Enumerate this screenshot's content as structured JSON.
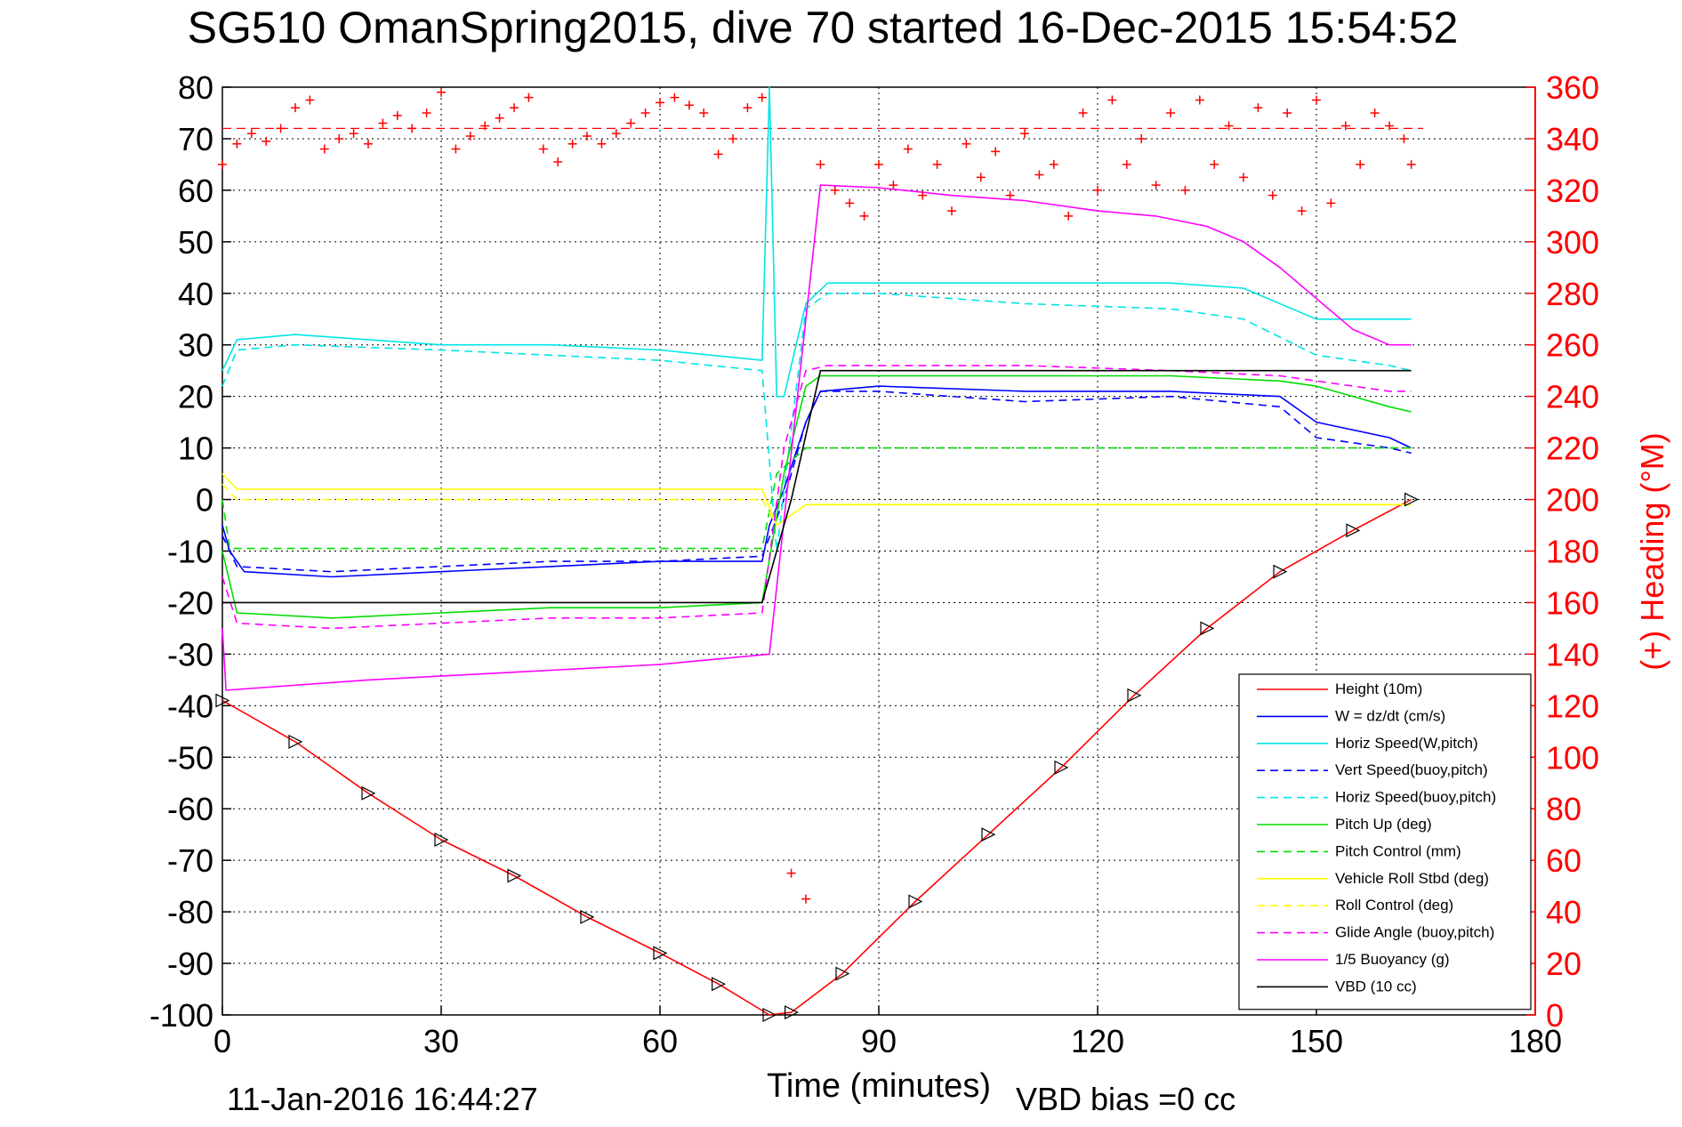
{
  "chart_data": {
    "type": "line",
    "title": "SG510 OmanSpring2015, dive 70 started 16-Dec-2015 15:54:52",
    "xlabel": "Time (minutes)",
    "ylabel": "",
    "y2label": "(+) Heading (°M)",
    "xlim": [
      0,
      180
    ],
    "ylim": [
      -100,
      80
    ],
    "y2lim": [
      0,
      360
    ],
    "x_ticks": [
      "0",
      "30",
      "60",
      "90",
      "120",
      "150",
      "180"
    ],
    "y_ticks": [
      "80",
      "70",
      "60",
      "50",
      "40",
      "30",
      "20",
      "10",
      "0",
      "-10",
      "-20",
      "-30",
      "-40",
      "-50",
      "-60",
      "-70",
      "-80",
      "-90",
      "-100"
    ],
    "y2_ticks": [
      "360",
      "340",
      "320",
      "300",
      "280",
      "260",
      "240",
      "220",
      "200",
      "180",
      "160",
      "140",
      "120",
      "100",
      "80",
      "60",
      "40",
      "20",
      "0"
    ],
    "grid": true,
    "legend_position": "bottom-right",
    "heading_reference_deg": 344,
    "footer_date": "11-Jan-2016 16:44:27",
    "footer_bias": "VBD bias =0 cc",
    "series": [
      {
        "name": "Height (10m)",
        "color": "#ff0000",
        "style": "solid",
        "x": [
          0,
          10,
          20,
          30,
          40,
          50,
          60,
          68,
          75,
          78,
          85,
          95,
          105,
          115,
          125,
          135,
          145,
          155,
          163
        ],
        "y": [
          -39,
          -47,
          -57,
          -66,
          -73,
          -81,
          -88,
          -94,
          -100,
          -99.5,
          -92,
          -78,
          -65,
          -52,
          -38,
          -25,
          -14,
          -6,
          0
        ]
      },
      {
        "name": "W = dz/dt (cm/s)",
        "color": "#0000ff",
        "style": "solid",
        "x": [
          0,
          1,
          3,
          15,
          30,
          45,
          60,
          74,
          75,
          77,
          80,
          82,
          90,
          110,
          130,
          145,
          150,
          160,
          163
        ],
        "y": [
          -5,
          -10,
          -14,
          -15,
          -14,
          -13,
          -12,
          -12,
          -5,
          2,
          15,
          21,
          22,
          21,
          21,
          20,
          15,
          12,
          10
        ]
      },
      {
        "name": "Horiz Speed(W,pitch)",
        "color": "#00e5e5",
        "style": "solid",
        "x": [
          0,
          2,
          10,
          30,
          45,
          60,
          74,
          75,
          76,
          77,
          80,
          83,
          90,
          110,
          130,
          140,
          150,
          160,
          163
        ],
        "y": [
          25,
          31,
          32,
          30,
          30,
          29,
          27,
          80,
          20,
          20,
          38,
          42,
          42,
          42,
          42,
          41,
          35,
          35,
          35
        ]
      },
      {
        "name": "Vert Speed(buoy,pitch)",
        "color": "#0000ff",
        "style": "dashed",
        "x": [
          0,
          2,
          15,
          30,
          45,
          60,
          74,
          77,
          80,
          82,
          90,
          110,
          130,
          145,
          150,
          160,
          163
        ],
        "y": [
          -7,
          -13,
          -14,
          -13,
          -12,
          -12,
          -11,
          0,
          15,
          21,
          21,
          19,
          20,
          18,
          12,
          10,
          9
        ]
      },
      {
        "name": "Horiz Speed(buoy,pitch)",
        "color": "#00e5e5",
        "style": "dashed",
        "x": [
          0,
          2,
          10,
          30,
          45,
          60,
          74,
          76,
          80,
          83,
          90,
          110,
          130,
          140,
          150,
          160,
          163
        ],
        "y": [
          22,
          29,
          30,
          29,
          28,
          27,
          25,
          -10,
          37,
          40,
          40,
          38,
          37,
          35,
          28,
          26,
          25
        ]
      },
      {
        "name": "Pitch Up (deg)",
        "color": "#00dd00",
        "style": "solid",
        "x": [
          0,
          2,
          15,
          30,
          45,
          60,
          74,
          77,
          80,
          82,
          90,
          110,
          130,
          145,
          150,
          160,
          163
        ],
        "y": [
          -10,
          -22,
          -23,
          -22,
          -21,
          -21,
          -20,
          5,
          22,
          24,
          24,
          24,
          24,
          23,
          22,
          18,
          17
        ]
      },
      {
        "name": "Pitch Control (mm)",
        "color": "#00dd00",
        "style": "dashed",
        "x": [
          0,
          1,
          74,
          76,
          80,
          82,
          163
        ],
        "y": [
          0,
          -9.5,
          -9.5,
          5,
          10,
          10,
          10
        ]
      },
      {
        "name": "Vehicle Roll Stbd (deg)",
        "color": "#ffff00",
        "style": "solid",
        "x": [
          0,
          2,
          74,
          76,
          80,
          82,
          163
        ],
        "y": [
          5,
          2,
          2,
          -5,
          -1,
          -1,
          -1
        ]
      },
      {
        "name": "Roll Control (deg)",
        "color": "#ffff00",
        "style": "dashed",
        "x": [
          0,
          2,
          74,
          76,
          80,
          82,
          163
        ],
        "y": [
          3,
          0,
          0,
          -5,
          -1,
          -1,
          -1
        ]
      },
      {
        "name": "Glide Angle (buoy,pitch)",
        "color": "#ff00ff",
        "style": "dashed",
        "x": [
          0,
          2,
          15,
          30,
          45,
          60,
          74,
          77,
          80,
          83,
          90,
          110,
          130,
          145,
          150,
          160,
          163
        ],
        "y": [
          -15,
          -24,
          -25,
          -24,
          -23,
          -23,
          -22,
          10,
          25,
          26,
          26,
          26,
          25,
          24,
          23,
          21,
          21
        ]
      },
      {
        "name": "1/5 Buoyancy (g)",
        "color": "#ff00ff",
        "style": "solid",
        "x": [
          0,
          0.5,
          20,
          40,
          60,
          75,
          82,
          90,
          100,
          110,
          120,
          128,
          135,
          140,
          145,
          150,
          155,
          160,
          163
        ],
        "y": [
          -25,
          -37,
          -35,
          -33.5,
          -32,
          -30,
          61,
          60.5,
          59,
          58,
          56,
          55,
          53,
          50,
          45,
          39,
          33,
          30,
          30
        ]
      },
      {
        "name": "VBD (10 cc)",
        "color": "#000000",
        "style": "solid",
        "x": [
          0,
          74,
          78,
          82,
          163
        ],
        "y": [
          -20,
          -20,
          0,
          25,
          25
        ]
      }
    ],
    "heading_points": {
      "name": "(+) Heading",
      "color": "#ff0000",
      "x": [
        0,
        2,
        4,
        6,
        8,
        10,
        12,
        14,
        16,
        18,
        20,
        22,
        24,
        26,
        28,
        30,
        32,
        34,
        36,
        38,
        40,
        42,
        44,
        46,
        48,
        50,
        52,
        54,
        56,
        58,
        60,
        62,
        64,
        66,
        68,
        70,
        72,
        74,
        78,
        80,
        82,
        84,
        86,
        88,
        90,
        92,
        94,
        96,
        98,
        100,
        102,
        104,
        106,
        108,
        110,
        112,
        114,
        116,
        118,
        120,
        122,
        124,
        126,
        128,
        130,
        132,
        134,
        136,
        138,
        140,
        142,
        144,
        146,
        148,
        150,
        152,
        154,
        156,
        158,
        160,
        162,
        163
      ],
      "y": [
        330,
        338,
        342,
        339,
        344,
        352,
        355,
        336,
        340,
        342,
        338,
        346,
        349,
        344,
        350,
        358,
        336,
        341,
        345,
        348,
        352,
        356,
        336,
        331,
        338,
        341,
        338,
        342,
        346,
        350,
        354,
        356,
        353,
        350,
        334,
        340,
        352,
        356,
        55,
        45,
        330,
        320,
        315,
        310,
        330,
        322,
        336,
        318,
        330,
        312,
        338,
        325,
        335,
        318,
        342,
        326,
        330,
        310,
        350,
        320,
        355,
        330,
        340,
        322,
        350,
        320,
        355,
        330,
        345,
        325,
        352,
        318,
        350,
        312,
        355,
        315,
        345,
        330,
        350,
        345,
        340,
        330
      ]
    }
  }
}
